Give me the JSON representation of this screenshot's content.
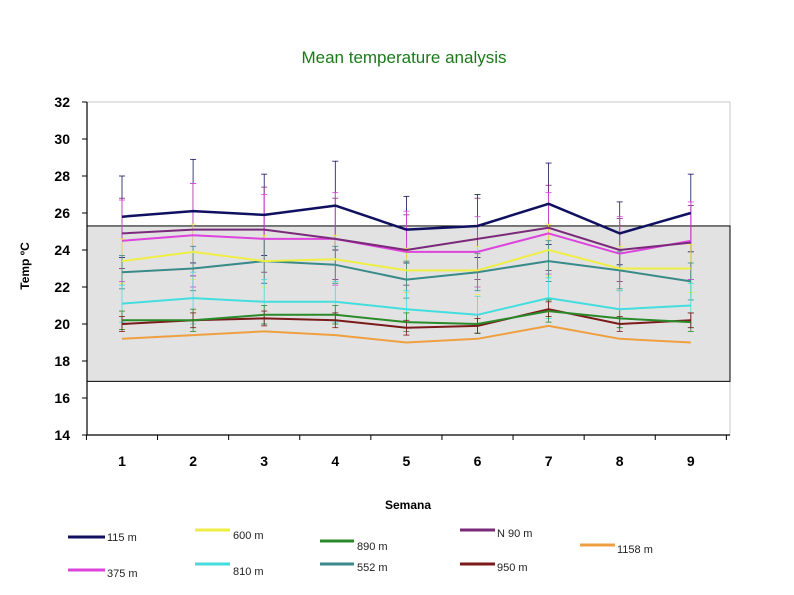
{
  "chart_data": {
    "type": "line",
    "title": "Mean temperature analysis",
    "xlabel": "Semana",
    "ylabel": "Temp ºC",
    "x": [
      1,
      2,
      3,
      4,
      5,
      6,
      7,
      8,
      9
    ],
    "x_tick_labels": [
      "1",
      "2",
      "3",
      "4",
      "5",
      "6",
      "7",
      "8",
      "9"
    ],
    "ylim": [
      14,
      32
    ],
    "y_ticks": [
      14,
      16,
      18,
      20,
      22,
      24,
      26,
      28,
      30,
      32
    ],
    "y_tick_labels": [
      "14",
      "16",
      "18",
      "20",
      "22",
      "24",
      "26",
      "28",
      "30",
      "32"
    ],
    "shaded_band": [
      16.9,
      25.3
    ],
    "legend_position": "bottom",
    "series": [
      {
        "name": "115 m",
        "color": "#101060",
        "width": 2.5,
        "values": [
          25.8,
          26.1,
          25.9,
          26.4,
          25.1,
          25.3,
          26.5,
          24.9,
          26.0
        ],
        "err": [
          2.2,
          2.8,
          2.2,
          2.4,
          1.8,
          1.7,
          2.2,
          1.7,
          2.1
        ]
      },
      {
        "name": "N 90 m",
        "color": "#7a2a7a",
        "width": 2,
        "values": [
          24.9,
          25.1,
          25.1,
          24.6,
          24.0,
          24.6,
          25.2,
          24.0,
          24.4
        ],
        "err": [
          1.9,
          2.5,
          2.3,
          2.2,
          1.9,
          2.2,
          2.3,
          1.7,
          2.0
        ]
      },
      {
        "name": "375 m",
        "color": "#dd44dd",
        "width": 2,
        "values": [
          24.5,
          24.8,
          24.6,
          24.6,
          23.9,
          23.9,
          24.9,
          23.8,
          24.5
        ],
        "err": [
          2.2,
          2.8,
          2.4,
          2.5,
          2.2,
          1.9,
          2.2,
          2.0,
          2.1
        ]
      },
      {
        "name": "600 m",
        "color": "#eeee44",
        "width": 2,
        "values": [
          23.4,
          23.9,
          23.4,
          23.5,
          22.9,
          22.9,
          24.0,
          23.0,
          23.0
        ],
        "err": [
          1.2,
          1.5,
          1.4,
          1.3,
          1.2,
          1.3,
          1.4,
          1.2,
          1.3
        ]
      },
      {
        "name": "552 m",
        "color": "#3a8a8a",
        "width": 2,
        "values": [
          22.8,
          23.0,
          23.4,
          23.2,
          22.4,
          22.8,
          23.4,
          22.9,
          22.3
        ],
        "err": [
          0.9,
          1.2,
          1.2,
          1.0,
          1.0,
          1.0,
          1.1,
          1.0,
          1.0
        ]
      },
      {
        "name": "810 m",
        "color": "#44dddd",
        "width": 2,
        "values": [
          21.1,
          21.4,
          21.2,
          21.2,
          20.8,
          20.5,
          21.4,
          20.8,
          21.0
        ],
        "err": [
          1.0,
          1.4,
          1.2,
          1.1,
          1.0,
          1.0,
          1.1,
          1.0,
          1.2
        ]
      },
      {
        "name": "890 m",
        "color": "#2a8a2a",
        "width": 2,
        "values": [
          20.2,
          20.2,
          20.5,
          20.5,
          20.1,
          20.0,
          20.7,
          20.3,
          20.1
        ],
        "err": [
          0.5,
          0.6,
          0.5,
          0.5,
          0.5,
          0.5,
          0.6,
          0.5,
          0.5
        ]
      },
      {
        "name": "950 m",
        "color": "#7a1a1a",
        "width": 2,
        "values": [
          20.0,
          20.2,
          20.3,
          20.2,
          19.8,
          19.9,
          20.8,
          20.0,
          20.2
        ],
        "err": [
          0.4,
          0.4,
          0.4,
          0.4,
          0.4,
          0.4,
          0.4,
          0.4,
          0.4
        ]
      },
      {
        "name": "1158 m",
        "color": "#eea040",
        "width": 2,
        "values": [
          19.2,
          19.4,
          19.6,
          19.4,
          19.0,
          19.2,
          19.9,
          19.2,
          19.0
        ],
        "err": [
          0,
          0,
          0,
          0,
          0,
          0,
          0,
          0,
          0
        ]
      }
    ]
  }
}
